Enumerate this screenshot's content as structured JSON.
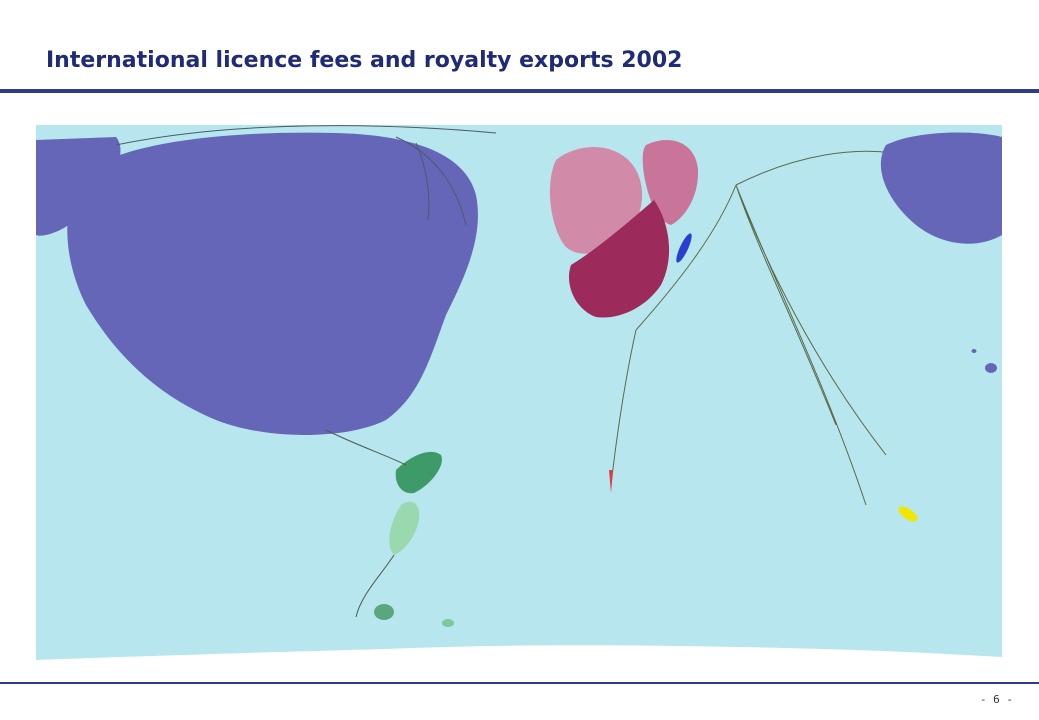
{
  "slide": {
    "title": "International licence fees and royalty exports 2002",
    "page_number": "- 6 -"
  },
  "map": {
    "ocean_color": "#b8e6ee",
    "regions": [
      {
        "name": "north-america",
        "color": "#6666b8"
      },
      {
        "name": "western-europe",
        "color": "#d18aa8"
      },
      {
        "name": "europe-south-east",
        "color": "#9c2b5c"
      },
      {
        "name": "latin-america",
        "color": "#3f9a6a"
      },
      {
        "name": "asia-pacific",
        "color": "#6666b8"
      },
      {
        "name": "oceania",
        "color": "#f2e500"
      },
      {
        "name": "antarctica",
        "color": "#ffffff"
      }
    ]
  }
}
